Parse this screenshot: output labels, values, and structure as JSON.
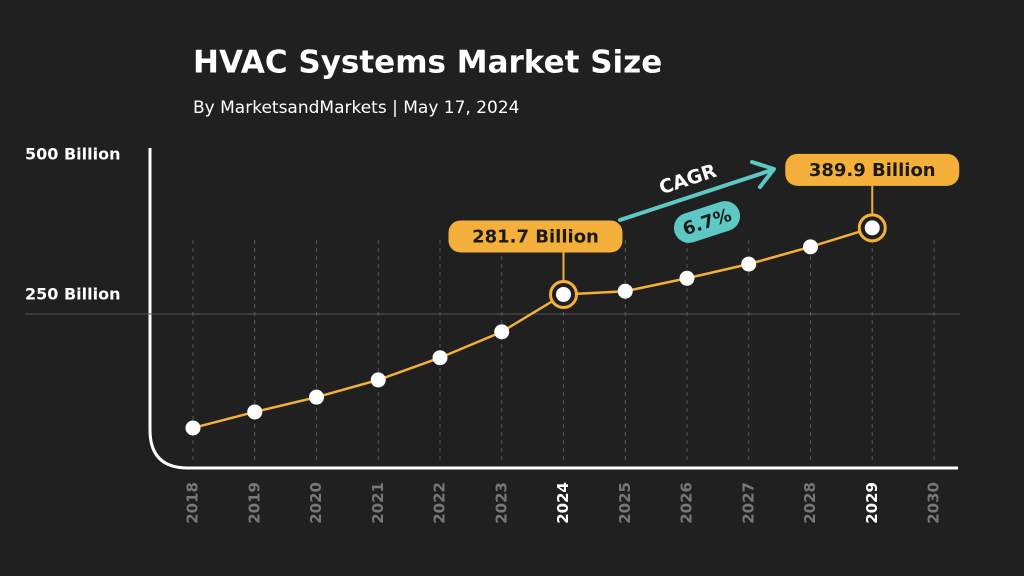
{
  "chart_data": {
    "type": "line",
    "title": "HVAC Systems Market Size",
    "subtitle": "By MarketsandMarkets | May 17, 2024",
    "categories": [
      "2018",
      "2019",
      "2020",
      "2021",
      "2022",
      "2023",
      "2024",
      "2025",
      "2026",
      "2027",
      "2028",
      "2029",
      "2030"
    ],
    "values": [
      65,
      91,
      115,
      143,
      179,
      221,
      281.7,
      287,
      308,
      331,
      359,
      389.9,
      null
    ],
    "value_labels": [
      null,
      null,
      null,
      null,
      null,
      null,
      "281.7 Billion",
      null,
      null,
      null,
      null,
      "389.9 Billion",
      null
    ],
    "highlight_indices": [
      6,
      11
    ],
    "color": "#f4b03a",
    "ylim": [
      0,
      500
    ],
    "yticks": [
      {
        "value": 250,
        "label": "250 Billion"
      },
      {
        "value": 500,
        "label": "500 Billion"
      }
    ],
    "annotation": {
      "label": "CAGR",
      "value": "6.7%",
      "color": "#5ec8c4"
    }
  }
}
